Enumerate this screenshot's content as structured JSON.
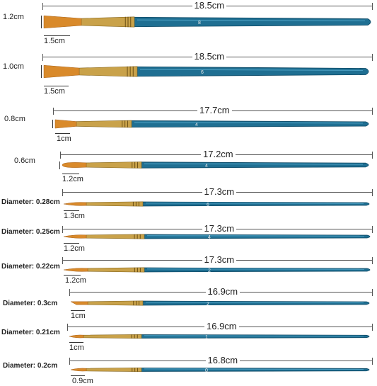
{
  "colors": {
    "handle": "#1f6f92",
    "handle_dark": "#0f4a66",
    "ferrule": "#c9a24a",
    "bristle": "#d98a2b",
    "line": "#555555"
  },
  "brushes": [
    {
      "length_label": "18.5cm",
      "left_label": "1.2cm",
      "tip_label": "1.5cm",
      "number": "8"
    },
    {
      "length_label": "18.5cm",
      "left_label": "1.0cm",
      "tip_label": "1.5cm",
      "number": "6"
    },
    {
      "length_label": "17.7cm",
      "left_label": "0.8cm",
      "tip_label": "1cm",
      "number": "4"
    },
    {
      "length_label": "17.2cm",
      "left_label": "0.6cm",
      "tip_label": "1.2cm",
      "number": "4"
    },
    {
      "length_label": "17.3cm",
      "left_label": "Diameter: 0.28cm",
      "tip_label": "1.3cm",
      "number": "6"
    },
    {
      "length_label": "17.3cm",
      "left_label": "Diameter: 0.25cm",
      "tip_label": "1.2cm",
      "number": "4"
    },
    {
      "length_label": "17.3cm",
      "left_label": "Diameter: 0.22cm",
      "tip_label": "1.2cm",
      "number": "2"
    },
    {
      "length_label": "16.9cm",
      "left_label": "Diameter: 0.3cm",
      "tip_label": "1cm",
      "number": "2"
    },
    {
      "length_label": "16.9cm",
      "left_label": "Diameter: 0.21cm",
      "tip_label": "1cm",
      "number": "1"
    },
    {
      "length_label": "16.8cm",
      "left_label": "Diameter: 0.2cm",
      "tip_label": "0.9cm",
      "number": "0"
    }
  ]
}
